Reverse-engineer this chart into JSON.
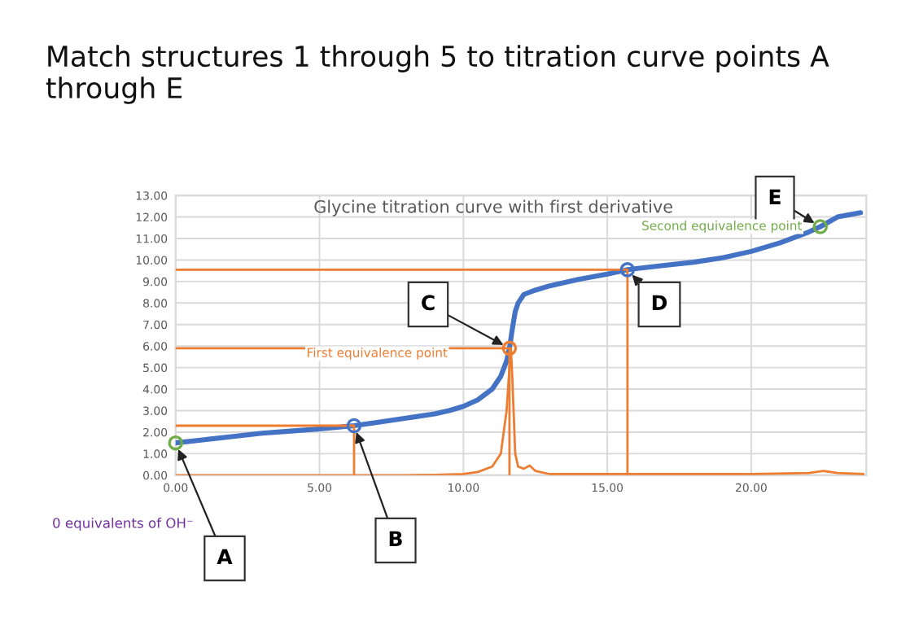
{
  "chart_data": {
    "type": "line",
    "title": "Match structures 1 through 5 to titration curve points A through E",
    "subtitle": "Glycine titration curve with first derivative",
    "series": [
      {
        "color": "#4472c4",
        "x": [
          0,
          1,
          2,
          3,
          4,
          5,
          6.2,
          7,
          8,
          9,
          9.5,
          10,
          10.5,
          11,
          11.3,
          11.5,
          11.6,
          11.7,
          11.8,
          11.9,
          12.1,
          12.5,
          13,
          14,
          15,
          15.7,
          16,
          17,
          18,
          19,
          20,
          21,
          22,
          22.4,
          23,
          23.8
        ],
        "values": [
          1.5,
          1.65,
          1.8,
          1.95,
          2.05,
          2.15,
          2.3,
          2.45,
          2.65,
          2.85,
          3.0,
          3.2,
          3.5,
          4.0,
          4.6,
          5.3,
          5.9,
          6.8,
          7.6,
          8.0,
          8.4,
          8.6,
          8.8,
          9.1,
          9.35,
          9.55,
          9.6,
          9.75,
          9.9,
          10.1,
          10.4,
          10.8,
          11.3,
          11.55,
          12.0,
          12.2
        ]
      },
      {
        "color": "#ed7d31",
        "x": [
          0,
          8,
          9,
          10,
          10.5,
          11,
          11.3,
          11.5,
          11.6,
          11.65,
          11.7,
          11.8,
          11.9,
          12.1,
          12.3,
          12.5,
          13,
          20,
          22,
          22.5,
          23,
          23.9
        ],
        "values": [
          0,
          0,
          0.02,
          0.05,
          0.15,
          0.4,
          1.0,
          3.0,
          5.0,
          5.9,
          4.5,
          1.0,
          0.4,
          0.3,
          0.45,
          0.2,
          0.05,
          0.05,
          0.1,
          0.2,
          0.1,
          0.05
        ]
      },
      {
        "type": "line",
        "color": "#ed7d31",
        "x": [
          0,
          6.2,
          6.2
        ],
        "values": [
          2.3,
          2.3,
          0
        ]
      },
      {
        "type": "line",
        "color": "#ed7d31",
        "x": [
          0,
          11.6,
          11.6
        ],
        "values": [
          5.9,
          5.9,
          0
        ]
      },
      {
        "type": "line",
        "color": "#ed7d31",
        "x": [
          0,
          15.7,
          15.7
        ],
        "values": [
          9.55,
          9.55,
          0
        ]
      },
      {
        "type": "scatter",
        "marker": "circle",
        "x": [
          0,
          6.2,
          11.6,
          15.7,
          22.4
        ],
        "values": [
          1.5,
          2.3,
          5.9,
          9.55,
          11.55
        ],
        "colors": [
          "#70ad47",
          "#4472c4",
          "#ed7d31",
          "#4472c4",
          "#70ad47"
        ]
      }
    ],
    "annotations": [
      {
        "text": "A",
        "x": 0,
        "y": 1.5
      },
      {
        "text": "B",
        "x": 6.2,
        "y": 2.3
      },
      {
        "text": "C",
        "x": 11.6,
        "y": 5.9
      },
      {
        "text": "D",
        "x": 15.7,
        "y": 9.55
      },
      {
        "text": "E",
        "x": 22.4,
        "y": 11.55
      },
      "First equivalence point",
      {
        "text": "Second equivalence point",
        "x": 22.4,
        "y": 11.55
      },
      "0 equivalents of OH⁻"
    ],
    "xlim": [
      0,
      24
    ],
    "ylim": [
      0,
      13
    ],
    "xticks": [
      {
        "value": 0,
        "label": "0.00"
      },
      {
        "value": 5,
        "label": "5.00"
      },
      {
        "value": 10,
        "label": "10.00"
      },
      {
        "value": 15,
        "label": "15.00"
      },
      {
        "value": 20,
        "label": "20.00"
      }
    ],
    "yticks": [
      {
        "value": 0,
        "label": "0.00"
      },
      {
        "value": 1,
        "label": "1.00"
      },
      {
        "value": 2,
        "label": "2.00"
      },
      {
        "value": 3,
        "label": "3.00"
      },
      {
        "value": 4,
        "label": "4.00"
      },
      {
        "value": 5,
        "label": "5.00"
      },
      {
        "value": 6,
        "label": "6.00"
      },
      {
        "value": 7,
        "label": "7.00"
      },
      {
        "value": 8,
        "label": "8.00"
      },
      {
        "value": 9,
        "label": "9.00"
      },
      {
        "value": 10,
        "label": "10.00"
      },
      {
        "value": 11,
        "label": "11.00"
      },
      {
        "value": 12,
        "label": "12.00"
      },
      {
        "value": 13,
        "label": "13.00"
      }
    ],
    "grid": true,
    "legend": false
  }
}
